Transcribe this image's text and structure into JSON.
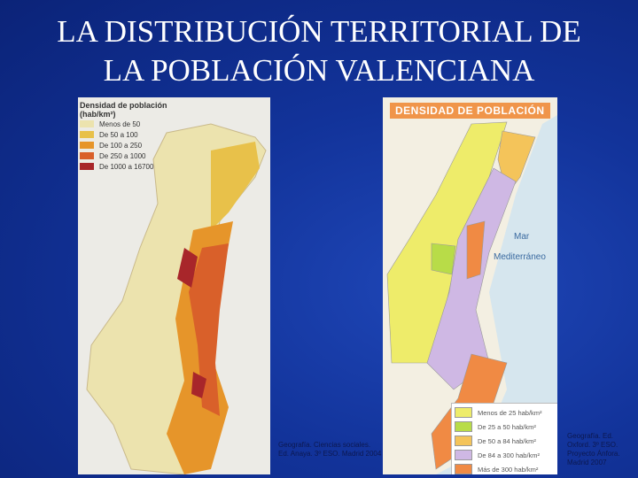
{
  "slide": {
    "title_line1": "LA DISTRIBUCIÓN TERRITORIAL DE",
    "title_line2": "LA POBLACIÓN VALENCIANA"
  },
  "left_map": {
    "legend_title": "Densidad de población",
    "legend_unit": "(hab/km²)",
    "legend": [
      {
        "label": "Menos de 50",
        "color": "#ece3ae"
      },
      {
        "label": "De 50 a 100",
        "color": "#e8c14a"
      },
      {
        "label": "De 100 a 250",
        "color": "#e6952a"
      },
      {
        "label": "De 250 a 1000",
        "color": "#d9602a"
      },
      {
        "label": "De 1000 a 16700",
        "color": "#a8262a"
      }
    ],
    "caption": "Geografía. Ciencias sociales. Ed. Anaya. 3º ESO. Madrid 2004"
  },
  "right_map": {
    "header": "DENSIDAD DE POBLACIÓN",
    "sea_label_1": "Mar",
    "sea_label_2": "Mediterráneo",
    "legend": [
      {
        "label": "Menos de 25 hab/km²",
        "color": "#eeec6a"
      },
      {
        "label": "De 25 a 50 hab/km²",
        "color": "#b8dc48"
      },
      {
        "label": "De 50 a 84 hab/km²",
        "color": "#f4c45a"
      },
      {
        "label": "De 84 a 300 hab/km²",
        "color": "#cfb8e4"
      },
      {
        "label": "Más de 300 hab/km²",
        "color": "#f08a44"
      }
    ],
    "caption": "Geografía. Ed. Oxford. 3º ESO. Proyecto Ánfora. Madrid 2007"
  }
}
